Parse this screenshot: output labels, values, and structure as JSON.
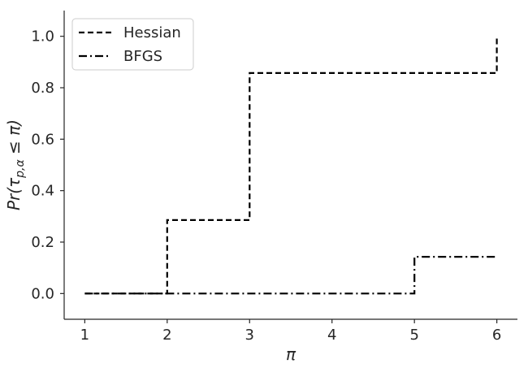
{
  "chart_data": {
    "type": "line",
    "step": "post",
    "xlabel": "π",
    "ylabel": "Pr(τ_{p,α} ≤ π)",
    "xlim": [
      0.75,
      6.25
    ],
    "ylim": [
      -0.1,
      1.1
    ],
    "xticks": [
      1,
      2,
      3,
      4,
      5,
      6
    ],
    "yticks": [
      0.0,
      0.2,
      0.4,
      0.6,
      0.8,
      1.0
    ],
    "xtick_labels": [
      "1",
      "2",
      "3",
      "4",
      "5",
      "6"
    ],
    "ytick_labels": [
      "0.0",
      "0.2",
      "0.4",
      "0.6",
      "0.8",
      "1.0"
    ],
    "grid": false,
    "legend_position": "top-left",
    "series": [
      {
        "name": "Hessian",
        "style": "dashed",
        "color": "#000000",
        "x": [
          1,
          2,
          3,
          6,
          6
        ],
        "y": [
          0.0,
          0.2857,
          0.8571,
          0.8571,
          1.0
        ]
      },
      {
        "name": "BFGS",
        "style": "dashdot",
        "color": "#000000",
        "x": [
          1,
          5,
          6
        ],
        "y": [
          0.0,
          0.1429,
          0.1429
        ]
      }
    ]
  }
}
